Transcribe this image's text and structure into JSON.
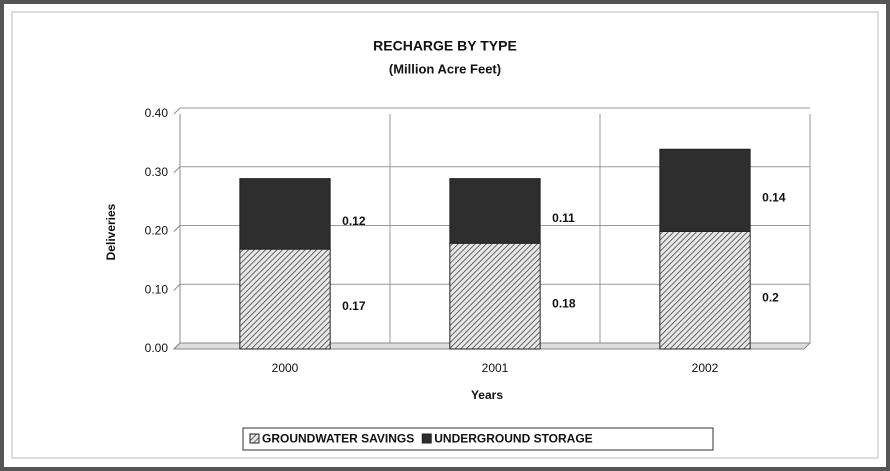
{
  "chart_data": {
    "type": "bar",
    "stacked": true,
    "title": "RECHARGE BY TYPE",
    "subtitle": "(Million Acre Feet)",
    "y_label": "Deliveries",
    "x_label": "Years",
    "categories": [
      "2000",
      "2001",
      "2002"
    ],
    "series": [
      {
        "name": "GROUNDWATER SAVINGS",
        "color": "#444444",
        "pattern": "hatch",
        "values": [
          0.17,
          0.18,
          0.2
        ]
      },
      {
        "name": "UNDERGROUND STORAGE",
        "color": "#2e2e2e",
        "pattern": "solid",
        "values": [
          0.12,
          0.11,
          0.14
        ]
      }
    ],
    "ylim": [
      0,
      0.4
    ],
    "yticks": [
      {
        "value": 0,
        "label": "0.00"
      },
      {
        "value": 0.1,
        "label": "0.10"
      },
      {
        "value": 0.2,
        "label": "0.20"
      },
      {
        "value": 0.3,
        "label": "0.30"
      },
      {
        "value": 0.4,
        "label": "0.40"
      }
    ],
    "grid": true,
    "legend": "bottom"
  }
}
